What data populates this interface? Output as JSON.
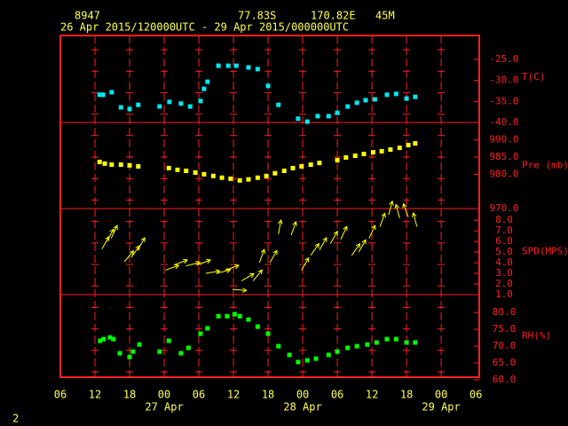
{
  "header": {
    "station": "8947",
    "lat": "77.83S",
    "lon": "170.82E",
    "elev": "45M",
    "period": "26 Apr 2015/120000UTC - 29 Apr 2015/000000UTC",
    "footer": "2"
  },
  "x_axis": {
    "xlim": [
      6,
      78.6
    ],
    "xticks": [
      {
        "value": 6,
        "label": "06"
      },
      {
        "value": 12,
        "label": "12"
      },
      {
        "value": 18,
        "label": "18"
      },
      {
        "value": 24,
        "label": "00"
      },
      {
        "value": 30,
        "label": "06"
      },
      {
        "value": 36,
        "label": "12"
      },
      {
        "value": 42,
        "label": "18"
      },
      {
        "value": 48,
        "label": "00"
      },
      {
        "value": 54,
        "label": "06"
      },
      {
        "value": 60,
        "label": "12"
      },
      {
        "value": 66,
        "label": "18"
      },
      {
        "value": 72,
        "label": "00"
      },
      {
        "value": 78,
        "label": "06"
      }
    ],
    "dates": [
      {
        "value": 24,
        "label": "27 Apr"
      },
      {
        "value": 48,
        "label": "28 Apr"
      },
      {
        "value": 72,
        "label": "29 Apr"
      }
    ],
    "grid": true
  },
  "chart_data": [
    {
      "type": "scatter",
      "y_label": "T(C)",
      "color": "#00e8f0",
      "ylim": [
        -40,
        -19.3
      ],
      "yticks": [
        {
          "value": -25,
          "label": "-25.0"
        },
        {
          "value": -30,
          "label": "-30.0"
        },
        {
          "value": -35,
          "label": "-35.0"
        },
        {
          "value": -40,
          "label": "-40.0"
        }
      ],
      "x": [
        12.8,
        13.4,
        14.9,
        16.5,
        18,
        19.5,
        23.2,
        24.9,
        26.9,
        28.5,
        30.3,
        30.9,
        31.5,
        33.4,
        35.1,
        36.5,
        38.6,
        40.2,
        42,
        43.8,
        47.2,
        48.8,
        50.6,
        52.5,
        54,
        55.8,
        57.4,
        58.9,
        60.5,
        62.6,
        64.2,
        66,
        67.5
      ],
      "values": [
        -33.4,
        -33.4,
        -32.8,
        -36.4,
        -36.8,
        -35.8,
        -36.2,
        -35.1,
        -35.5,
        -36.2,
        -34.9,
        -32,
        -30.3,
        -26.5,
        -26.5,
        -26.5,
        -26.9,
        -27.3,
        -31.3,
        -35.8,
        -39.1,
        -39.8,
        -38.5,
        -38.5,
        -37.7,
        -36.2,
        -35.3,
        -34.7,
        -34.5,
        -33.4,
        -33.2,
        -34.3,
        -33.9
      ]
    },
    {
      "type": "scatter",
      "y_label": "Pre (mb)",
      "color": "#ffff00",
      "ylim": [
        970,
        995.1
      ],
      "yticks": [
        {
          "value": 990,
          "label": "990.0"
        },
        {
          "value": 985,
          "label": "985.0"
        },
        {
          "value": 980,
          "label": "980.0"
        },
        {
          "value": 970,
          "label": "970.0"
        }
      ],
      "x": [
        12.8,
        13.7,
        14.9,
        16.5,
        18,
        19.5,
        24.8,
        26.3,
        27.8,
        29.4,
        30.9,
        32.5,
        34,
        35.5,
        37.1,
        38.6,
        40.2,
        41.7,
        43.2,
        44.8,
        46.3,
        47.8,
        49.4,
        50.9,
        54,
        55.5,
        57.1,
        58.6,
        60.2,
        61.7,
        63.2,
        64.8,
        66.3,
        67.5
      ],
      "values": [
        983.6,
        983.1,
        982.8,
        982.8,
        982.6,
        982.3,
        981.8,
        981.3,
        981,
        980.5,
        980,
        979.5,
        979,
        978.7,
        978.2,
        978.5,
        979,
        979.5,
        980.3,
        981,
        981.8,
        982.3,
        982.8,
        983.3,
        984.1,
        984.9,
        985.4,
        985.9,
        986.4,
        986.7,
        987.2,
        987.7,
        988.5,
        989
      ]
    },
    {
      "type": "quiver",
      "y_label": "SPD(MPS)",
      "color": "#ffff00",
      "ylim": [
        1,
        9.1
      ],
      "yticks": [
        {
          "value": 8,
          "label": "8.0"
        },
        {
          "value": 7,
          "label": "7.0"
        },
        {
          "value": 6,
          "label": "6.0"
        },
        {
          "value": 5,
          "label": "5.0"
        },
        {
          "value": 4,
          "label": "4.0"
        },
        {
          "value": 3,
          "label": "3.0"
        },
        {
          "value": 2,
          "label": "2.0"
        },
        {
          "value": 1,
          "label": "1.0"
        }
      ],
      "x": [
        13.2,
        14,
        14.8,
        17.1,
        18.3,
        19.4,
        24.2,
        25.7,
        27.8,
        29.7,
        31.2,
        33.1,
        34.6,
        35.8,
        37.4,
        39.4,
        40.5,
        42.3,
        43.8,
        46,
        47.8,
        49.4,
        50.9,
        52.8,
        54.6,
        56.5,
        57.7,
        59.5,
        61.4,
        62.9,
        64.8,
        66.3,
        67.8
      ],
      "values": [
        5.3,
        6,
        6.3,
        4.1,
        4.5,
        5.2,
        3.3,
        3.8,
        3.7,
        3.8,
        3,
        3,
        3.3,
        1.5,
        2.3,
        2.3,
        4,
        4,
        6.7,
        6.6,
        3.3,
        4.7,
        5.2,
        5.8,
        6.2,
        4.7,
        5,
        6.3,
        7.4,
        8.5,
        8.2,
        8.3,
        7.4
      ],
      "directions": [
        30,
        30,
        25,
        40,
        35,
        30,
        70,
        70,
        75,
        70,
        80,
        75,
        70,
        95,
        60,
        40,
        20,
        30,
        10,
        20,
        30,
        35,
        30,
        30,
        25,
        35,
        30,
        25,
        20,
        15,
        345,
        340,
        345
      ]
    },
    {
      "type": "scatter",
      "y_label": "RH(%)",
      "color": "#00ff00",
      "ylim": [
        60.8,
        85.3
      ],
      "yticks": [
        {
          "value": 80,
          "label": "80.0"
        },
        {
          "value": 75,
          "label": "75.0"
        },
        {
          "value": 70,
          "label": "70.0"
        },
        {
          "value": 65,
          "label": "65.0"
        },
        {
          "value": 60,
          "label": "60.0"
        }
      ],
      "x": [
        12.9,
        13.5,
        14.6,
        15.2,
        16.3,
        18,
        18.6,
        19.7,
        23.2,
        24.8,
        26.9,
        28.2,
        30.3,
        31.5,
        33.4,
        34.9,
        36.2,
        37.1,
        38.6,
        40.2,
        42,
        43.8,
        45.7,
        47.2,
        48.8,
        50.3,
        52.5,
        54,
        55.8,
        57.4,
        59.2,
        60.8,
        62.6,
        64.2,
        66,
        67.5
      ],
      "values": [
        71.6,
        72.1,
        72.6,
        72.1,
        67.9,
        66.8,
        68.4,
        70.5,
        68.4,
        71.6,
        67.9,
        69.5,
        73.7,
        75.3,
        78.9,
        78.9,
        79.5,
        78.9,
        77.9,
        75.8,
        73.7,
        70,
        67.4,
        65.3,
        65.8,
        66.3,
        67.4,
        68.4,
        69.5,
        70,
        70.5,
        71.1,
        72.1,
        72.1,
        71.1,
        71.1
      ]
    }
  ]
}
